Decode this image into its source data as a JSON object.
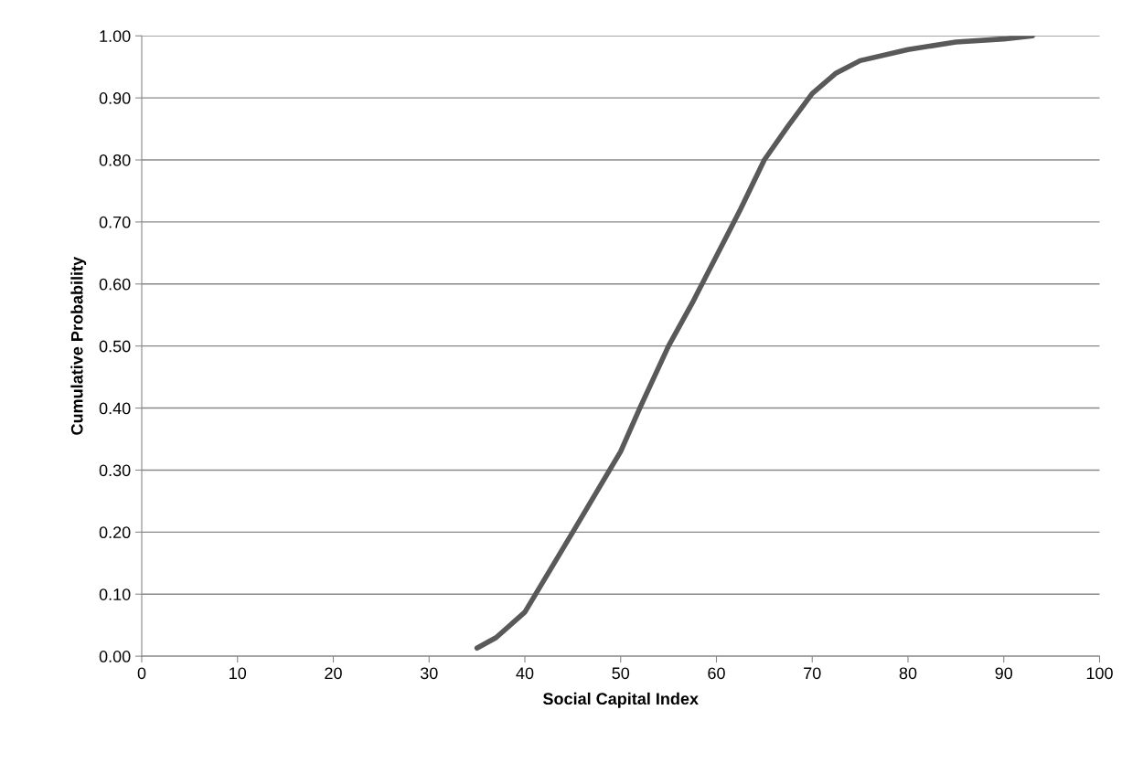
{
  "chart_data": {
    "type": "line",
    "xlabel": "Social Capital Index",
    "ylabel": "Cumulative Probability",
    "series": [
      {
        "color": "#595959",
        "x": [
          35,
          37,
          40,
          45,
          50,
          52,
          55,
          57.5,
          60,
          62.5,
          65,
          67.5,
          70,
          72.5,
          75,
          80,
          85,
          90,
          93
        ],
        "values": [
          0.013,
          0.03,
          0.071,
          0.2,
          0.33,
          0.4,
          0.5,
          0.57,
          0.645,
          0.72,
          0.8,
          0.855,
          0.907,
          0.94,
          0.96,
          0.978,
          0.99,
          0.995,
          1.0
        ]
      }
    ],
    "xlim": [
      0,
      100
    ],
    "xticks": [
      0,
      10,
      20,
      30,
      40,
      50,
      60,
      70,
      80,
      90,
      100
    ],
    "ylim": [
      0,
      1
    ],
    "yticks": [
      {
        "value": 0,
        "label": "0.00"
      },
      {
        "value": 0.1,
        "label": "0.10"
      },
      {
        "value": 0.2,
        "label": "0.20"
      },
      {
        "value": 0.3,
        "label": "0.30"
      },
      {
        "value": 0.4,
        "label": "0.40"
      },
      {
        "value": 0.5,
        "label": "0.50"
      },
      {
        "value": 0.6,
        "label": "0.60"
      },
      {
        "value": 0.7,
        "label": "0.70"
      },
      {
        "value": 0.8,
        "label": "0.80"
      },
      {
        "value": 0.9,
        "label": "0.90"
      },
      {
        "value": 1,
        "label": "1.00"
      }
    ],
    "grid": "y",
    "marker": "none",
    "line_style": "solid"
  }
}
